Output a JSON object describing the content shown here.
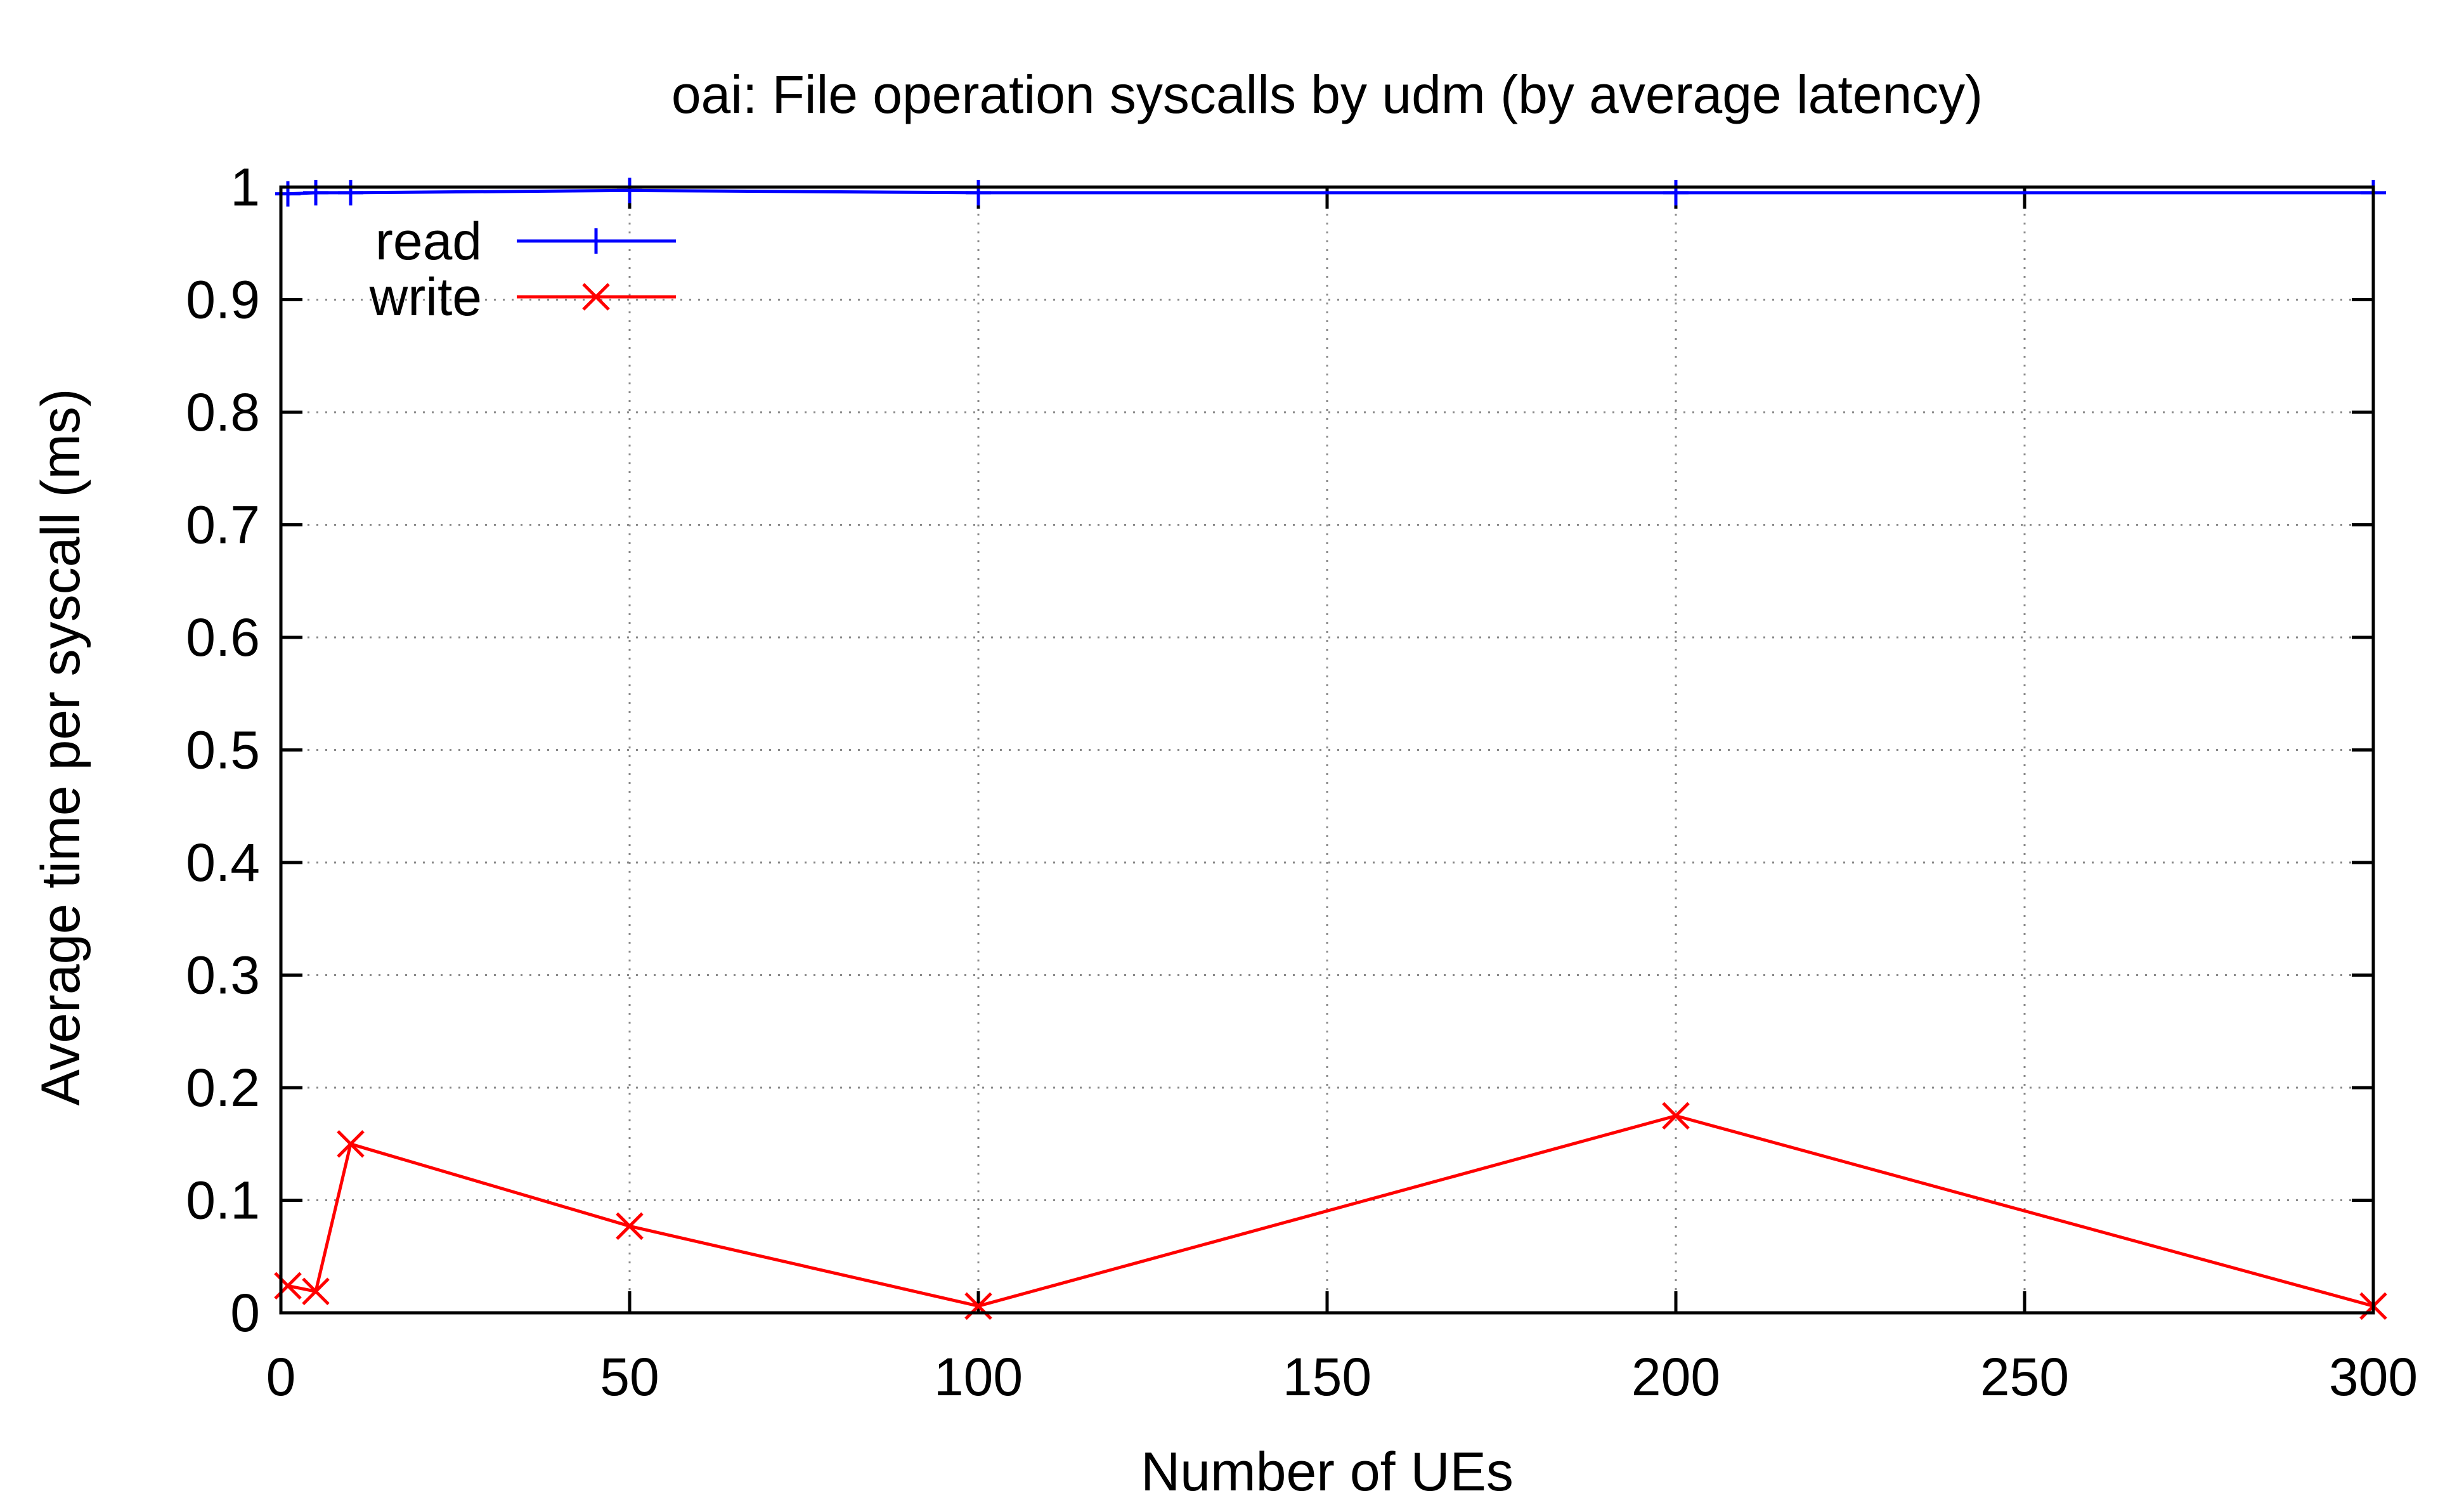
{
  "chart_data": {
    "type": "line",
    "title": "oai: File operation syscalls by udm (by average latency)",
    "xlabel": "Number of UEs",
    "ylabel": "Average time per syscall (ms)",
    "xlim": [
      0,
      300
    ],
    "ylim": [
      0,
      1
    ],
    "xticks": [
      0,
      50,
      100,
      150,
      200,
      250,
      300
    ],
    "yticks": [
      0,
      0.1,
      0.2,
      0.3,
      0.4,
      0.5,
      0.6,
      0.7,
      0.8,
      0.9,
      1
    ],
    "xtick_labels": [
      "0",
      "50",
      "100",
      "150",
      "200",
      "250",
      "300"
    ],
    "ytick_labels": [
      "0",
      "0.1",
      "0.2",
      "0.3",
      "0.4",
      "0.5",
      "0.6",
      "0.7",
      "0.8",
      "0.9",
      "1"
    ],
    "grid": true,
    "legend_position": "top-left",
    "series": [
      {
        "name": "read",
        "color": "#0000ff",
        "marker": "plus",
        "x": [
          1,
          5,
          10,
          50,
          100,
          200,
          300
        ],
        "y": [
          0.994,
          0.995,
          0.995,
          0.997,
          0.995,
          0.995,
          0.995
        ]
      },
      {
        "name": "write",
        "color": "#ff0000",
        "marker": "cross",
        "x": [
          1,
          5,
          10,
          50,
          100,
          200,
          300
        ],
        "y": [
          0.024,
          0.019,
          0.15,
          0.077,
          0.006,
          0.175,
          0.006
        ]
      }
    ]
  }
}
